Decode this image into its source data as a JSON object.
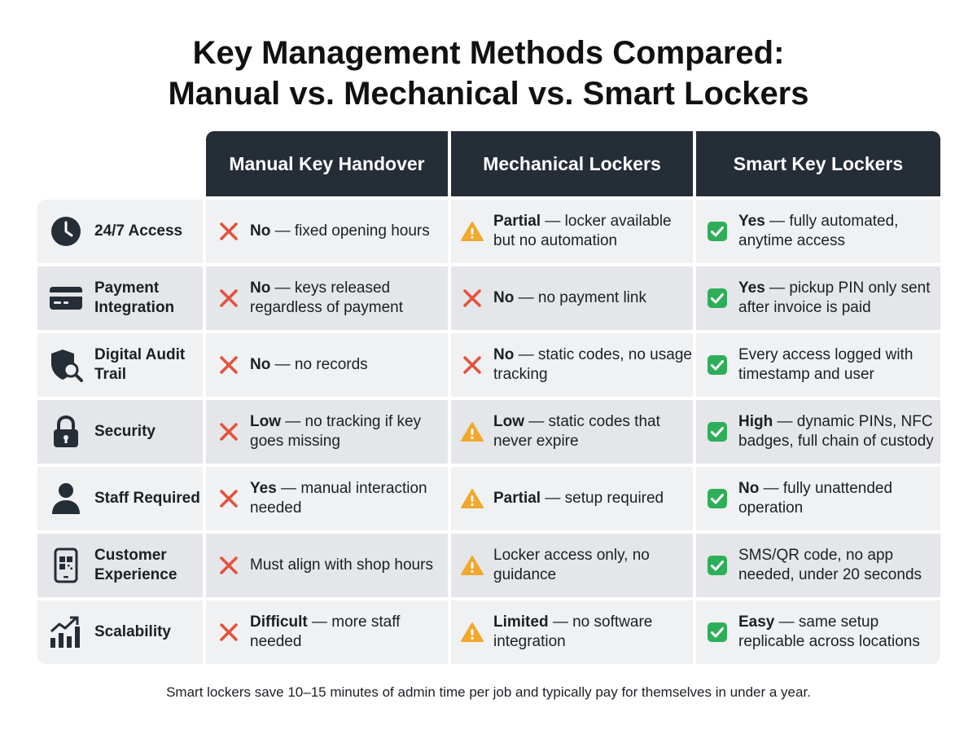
{
  "title": {
    "line1": "Key Management Methods Compared:",
    "line2": "Manual vs. Mechanical vs. Smart Lockers"
  },
  "columns": [
    "Manual Key Handover",
    "Mechanical Lockers",
    "Smart Key Lockers"
  ],
  "colors": {
    "header_bg": "#252d37",
    "no": "#e3533d",
    "partial": "#f0a92d",
    "yes": "#2fae5a"
  },
  "rows": [
    {
      "icon": "clock-icon",
      "label": "24/7 Access",
      "cells": [
        {
          "status": "no",
          "bold": "No",
          "text": " — fixed opening hours"
        },
        {
          "status": "partial",
          "bold": "Partial",
          "text": " — locker available but no automation"
        },
        {
          "status": "yes",
          "bold": "Yes",
          "text": " — fully automated, anytime access"
        }
      ]
    },
    {
      "icon": "credit-card-icon",
      "label": "Payment Integration",
      "cells": [
        {
          "status": "no",
          "bold": "No",
          "text": " — keys released regardless of payment"
        },
        {
          "status": "no",
          "bold": "No",
          "text": " — no payment link"
        },
        {
          "status": "yes",
          "bold": "Yes",
          "text": " — pickup PIN only sent after invoice is paid"
        }
      ]
    },
    {
      "icon": "shield-search-icon",
      "label": "Digital Audit Trail",
      "cells": [
        {
          "status": "no",
          "bold": "No",
          "text": " — no records"
        },
        {
          "status": "no",
          "bold": "No",
          "text": " — static codes, no usage tracking"
        },
        {
          "status": "yes",
          "bold": "",
          "text": "Every access logged with timestamp and user"
        }
      ]
    },
    {
      "icon": "padlock-icon",
      "label": "Security",
      "cells": [
        {
          "status": "no",
          "bold": "Low",
          "text": " — no tracking if key goes missing"
        },
        {
          "status": "partial",
          "bold": "Low",
          "text": " — static codes that never expire"
        },
        {
          "status": "yes",
          "bold": "High",
          "text": " — dynamic PINs, NFC badges, full chain of custody"
        }
      ]
    },
    {
      "icon": "person-icon",
      "label": "Staff Required",
      "cells": [
        {
          "status": "no",
          "bold": "Yes",
          "text": " — manual interaction needed"
        },
        {
          "status": "partial",
          "bold": "Partial",
          "text": " — setup required"
        },
        {
          "status": "yes",
          "bold": "No",
          "text": " — fully unattended operation"
        }
      ]
    },
    {
      "icon": "phone-qr-icon",
      "label": "Customer Experience",
      "cells": [
        {
          "status": "no",
          "bold": "",
          "text": "Must align with shop hours"
        },
        {
          "status": "partial",
          "bold": "",
          "text": "Locker access only, no guidance"
        },
        {
          "status": "yes",
          "bold": "",
          "text": "SMS/QR code, no app needed, under 20 seconds"
        }
      ]
    },
    {
      "icon": "growth-chart-icon",
      "label": "Scalability",
      "cells": [
        {
          "status": "no",
          "bold": "Difficult",
          "text": " — more staff needed"
        },
        {
          "status": "partial",
          "bold": "Limited",
          "text": " — no software integration"
        },
        {
          "status": "yes",
          "bold": "Easy",
          "text": " — same setup replicable across locations"
        }
      ]
    }
  ],
  "footer": "Smart lockers save 10–15 minutes of admin time per job and typically pay for themselves in under a year."
}
